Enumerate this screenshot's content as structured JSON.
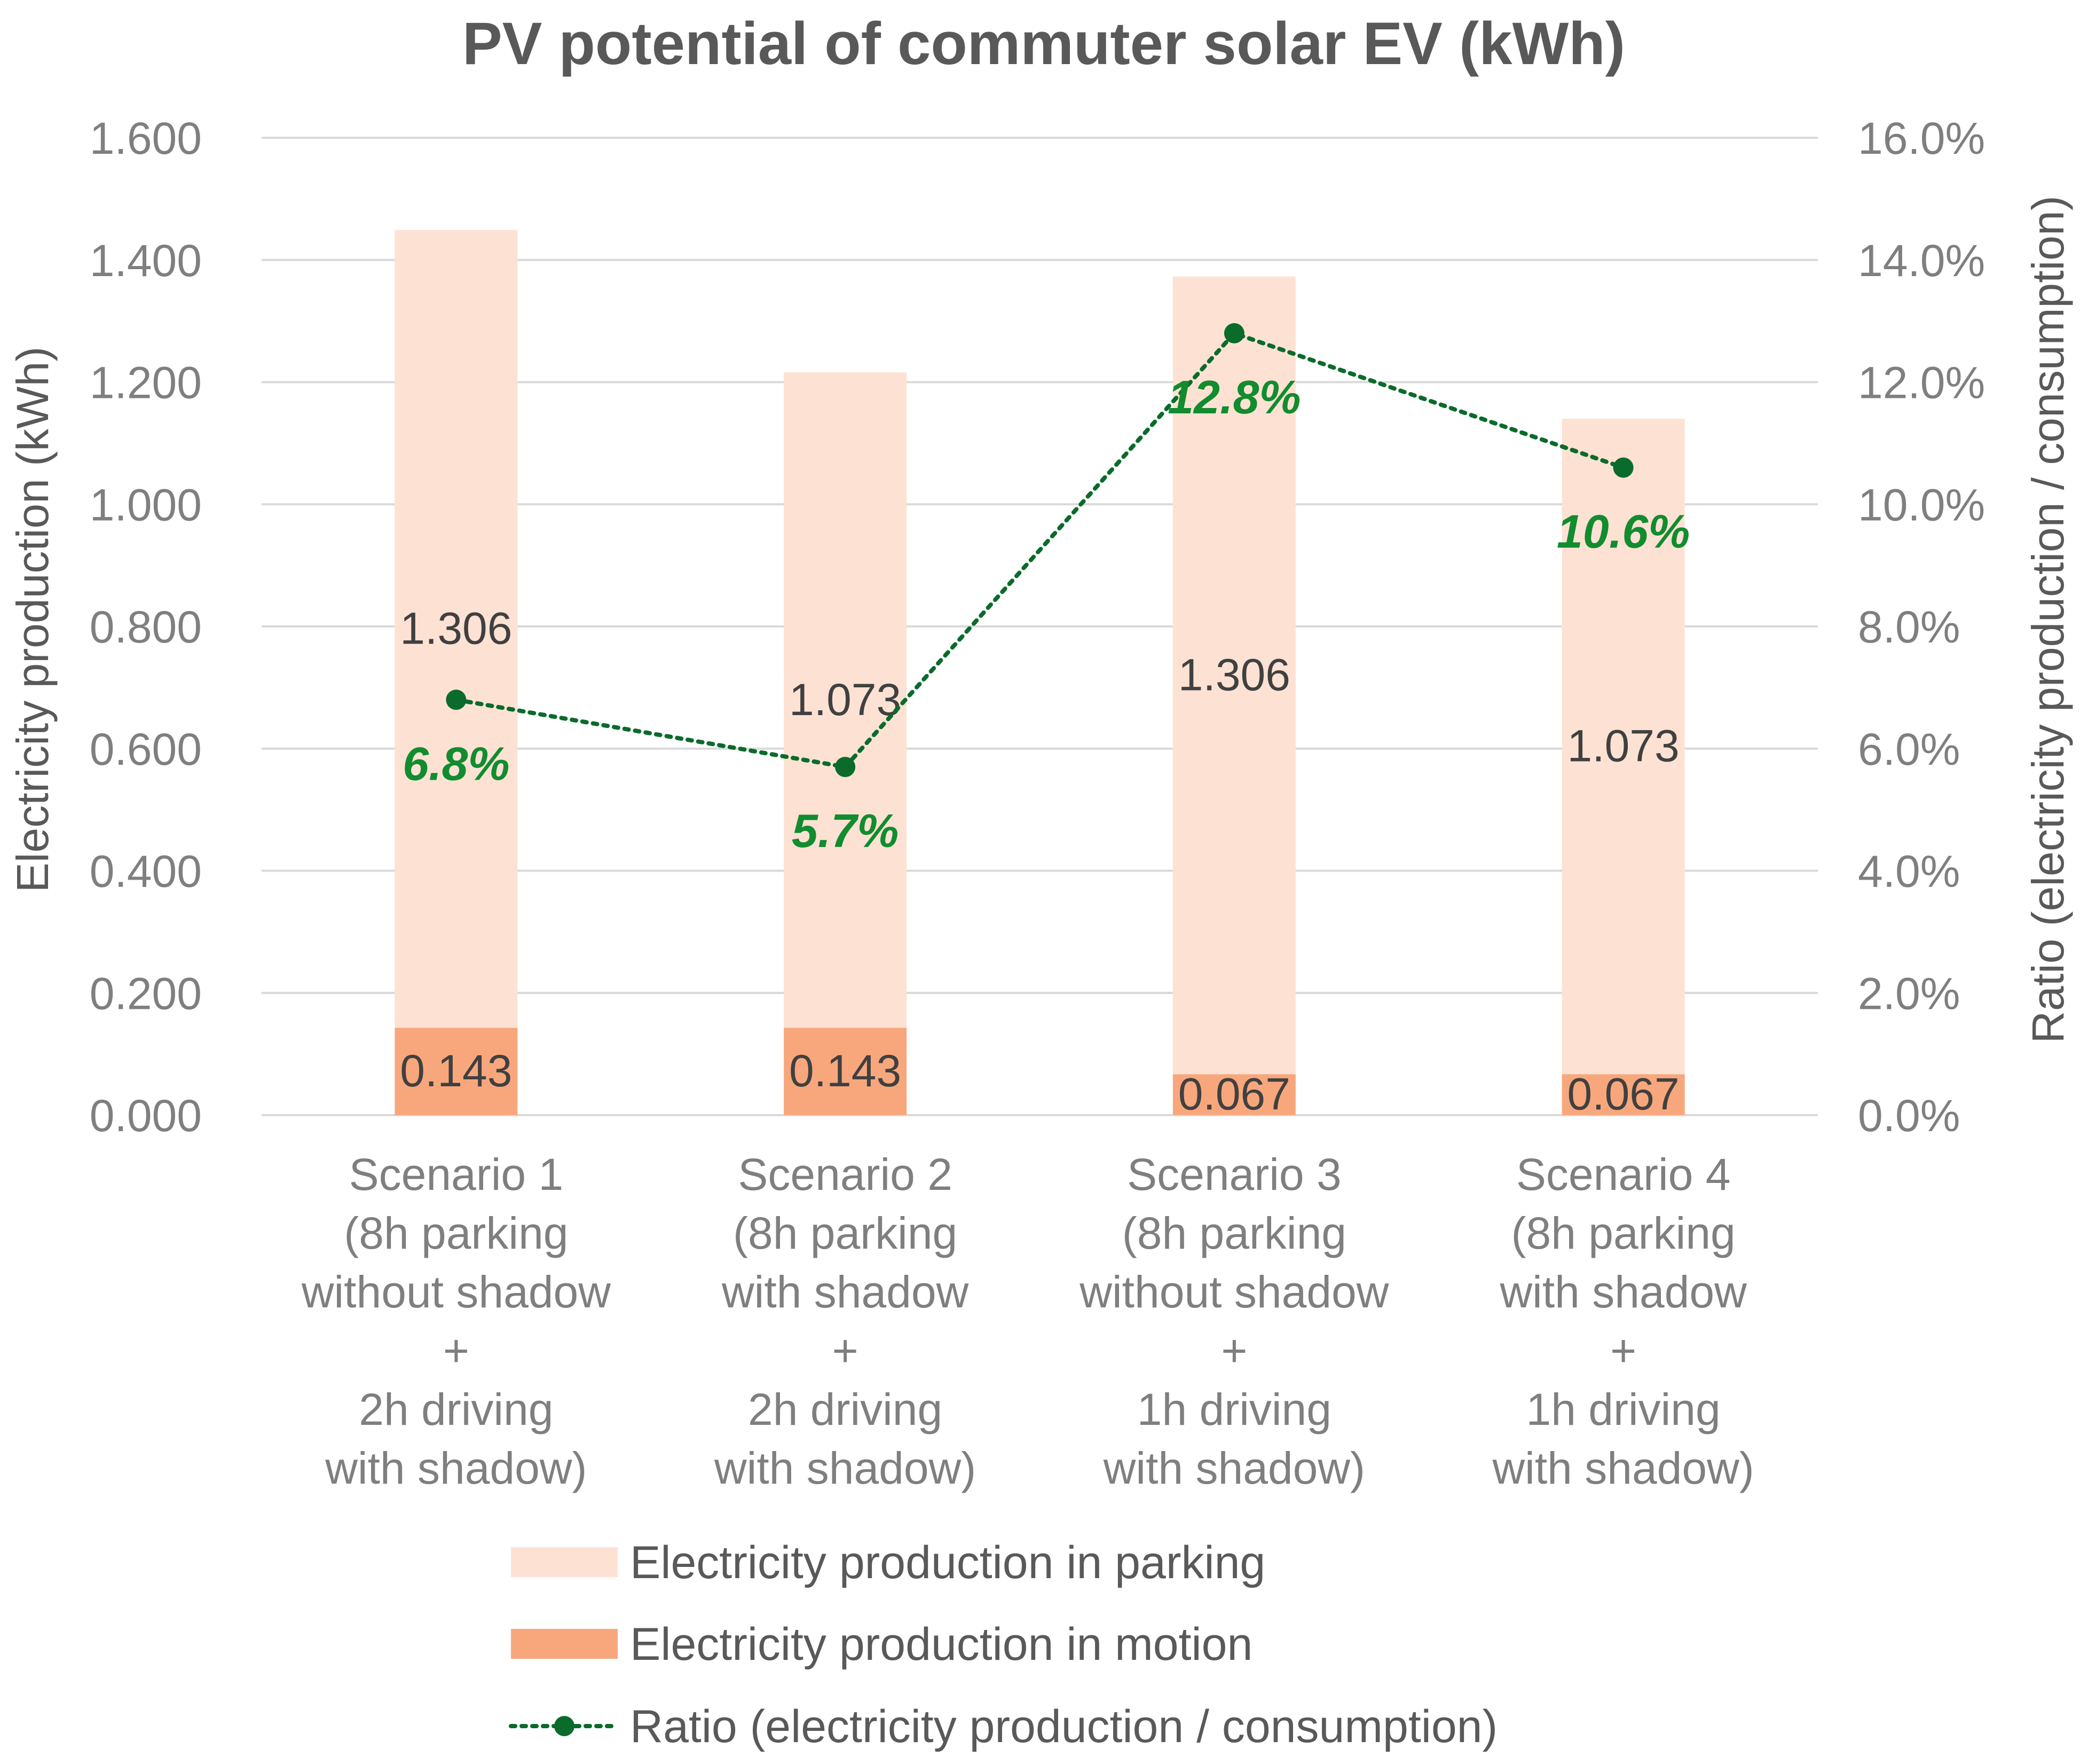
{
  "chart_data": {
    "type": "bar",
    "stacked": true,
    "title": "PV potential of commuter solar EV (kWh)",
    "ylabel": "Electricity production (kWh)",
    "y2label": "Ratio (electricity production / consumption)",
    "ylim": [
      0,
      1.6
    ],
    "y2lim": [
      0,
      16
    ],
    "yticks": [
      "0.000",
      "0.200",
      "0.400",
      "0.600",
      "0.800",
      "1.000",
      "1.200",
      "1.400",
      "1.600"
    ],
    "y2ticks": [
      "0.0%",
      "2.0%",
      "4.0%",
      "6.0%",
      "8.0%",
      "10.0%",
      "12.0%",
      "14.0%",
      "16.0%"
    ],
    "categories": [
      [
        "Scenario 1",
        "(8h parking",
        "without shadow",
        "+",
        "2h driving",
        "with shadow)"
      ],
      [
        "Scenario 2",
        "(8h parking",
        "with shadow",
        "+",
        "2h driving",
        "with shadow)"
      ],
      [
        "Scenario 3",
        "(8h parking",
        "without shadow",
        "+",
        "1h driving",
        "with shadow)"
      ],
      [
        "Scenario 4",
        "(8h parking",
        "with shadow",
        "+",
        "1h driving",
        "with shadow)"
      ]
    ],
    "series": [
      {
        "name": "Electricity production in motion",
        "values": [
          0.143,
          0.143,
          0.067,
          0.067
        ],
        "labels": [
          "0.143",
          "0.143",
          "0.067",
          "0.067"
        ],
        "color": "#f8a77d"
      },
      {
        "name": "Electricity production in parking",
        "values": [
          1.306,
          1.073,
          1.306,
          1.073
        ],
        "labels": [
          "1.306",
          "1.073",
          "1.306",
          "1.073"
        ],
        "color": "#fde2d4"
      }
    ],
    "ratio": {
      "name": "Ratio (electricity production / consumption)",
      "values": [
        6.8,
        5.7,
        12.8,
        10.6
      ],
      "labels": [
        "6.8%",
        "5.7%",
        "12.8%",
        "10.6%"
      ],
      "color": "#0a6b2a",
      "label_color": "#118c2e"
    },
    "legend": [
      {
        "name": "Electricity production in parking",
        "kind": "bar",
        "color": "#fde2d4"
      },
      {
        "name": "Electricity production in motion",
        "kind": "bar",
        "color": "#f8a77d"
      },
      {
        "name": "Ratio (electricity production / consumption)",
        "kind": "line",
        "color": "#0a6b2a"
      }
    ],
    "legend_position": "bottom",
    "grid": true,
    "grid_color": "#d9d9d9"
  }
}
